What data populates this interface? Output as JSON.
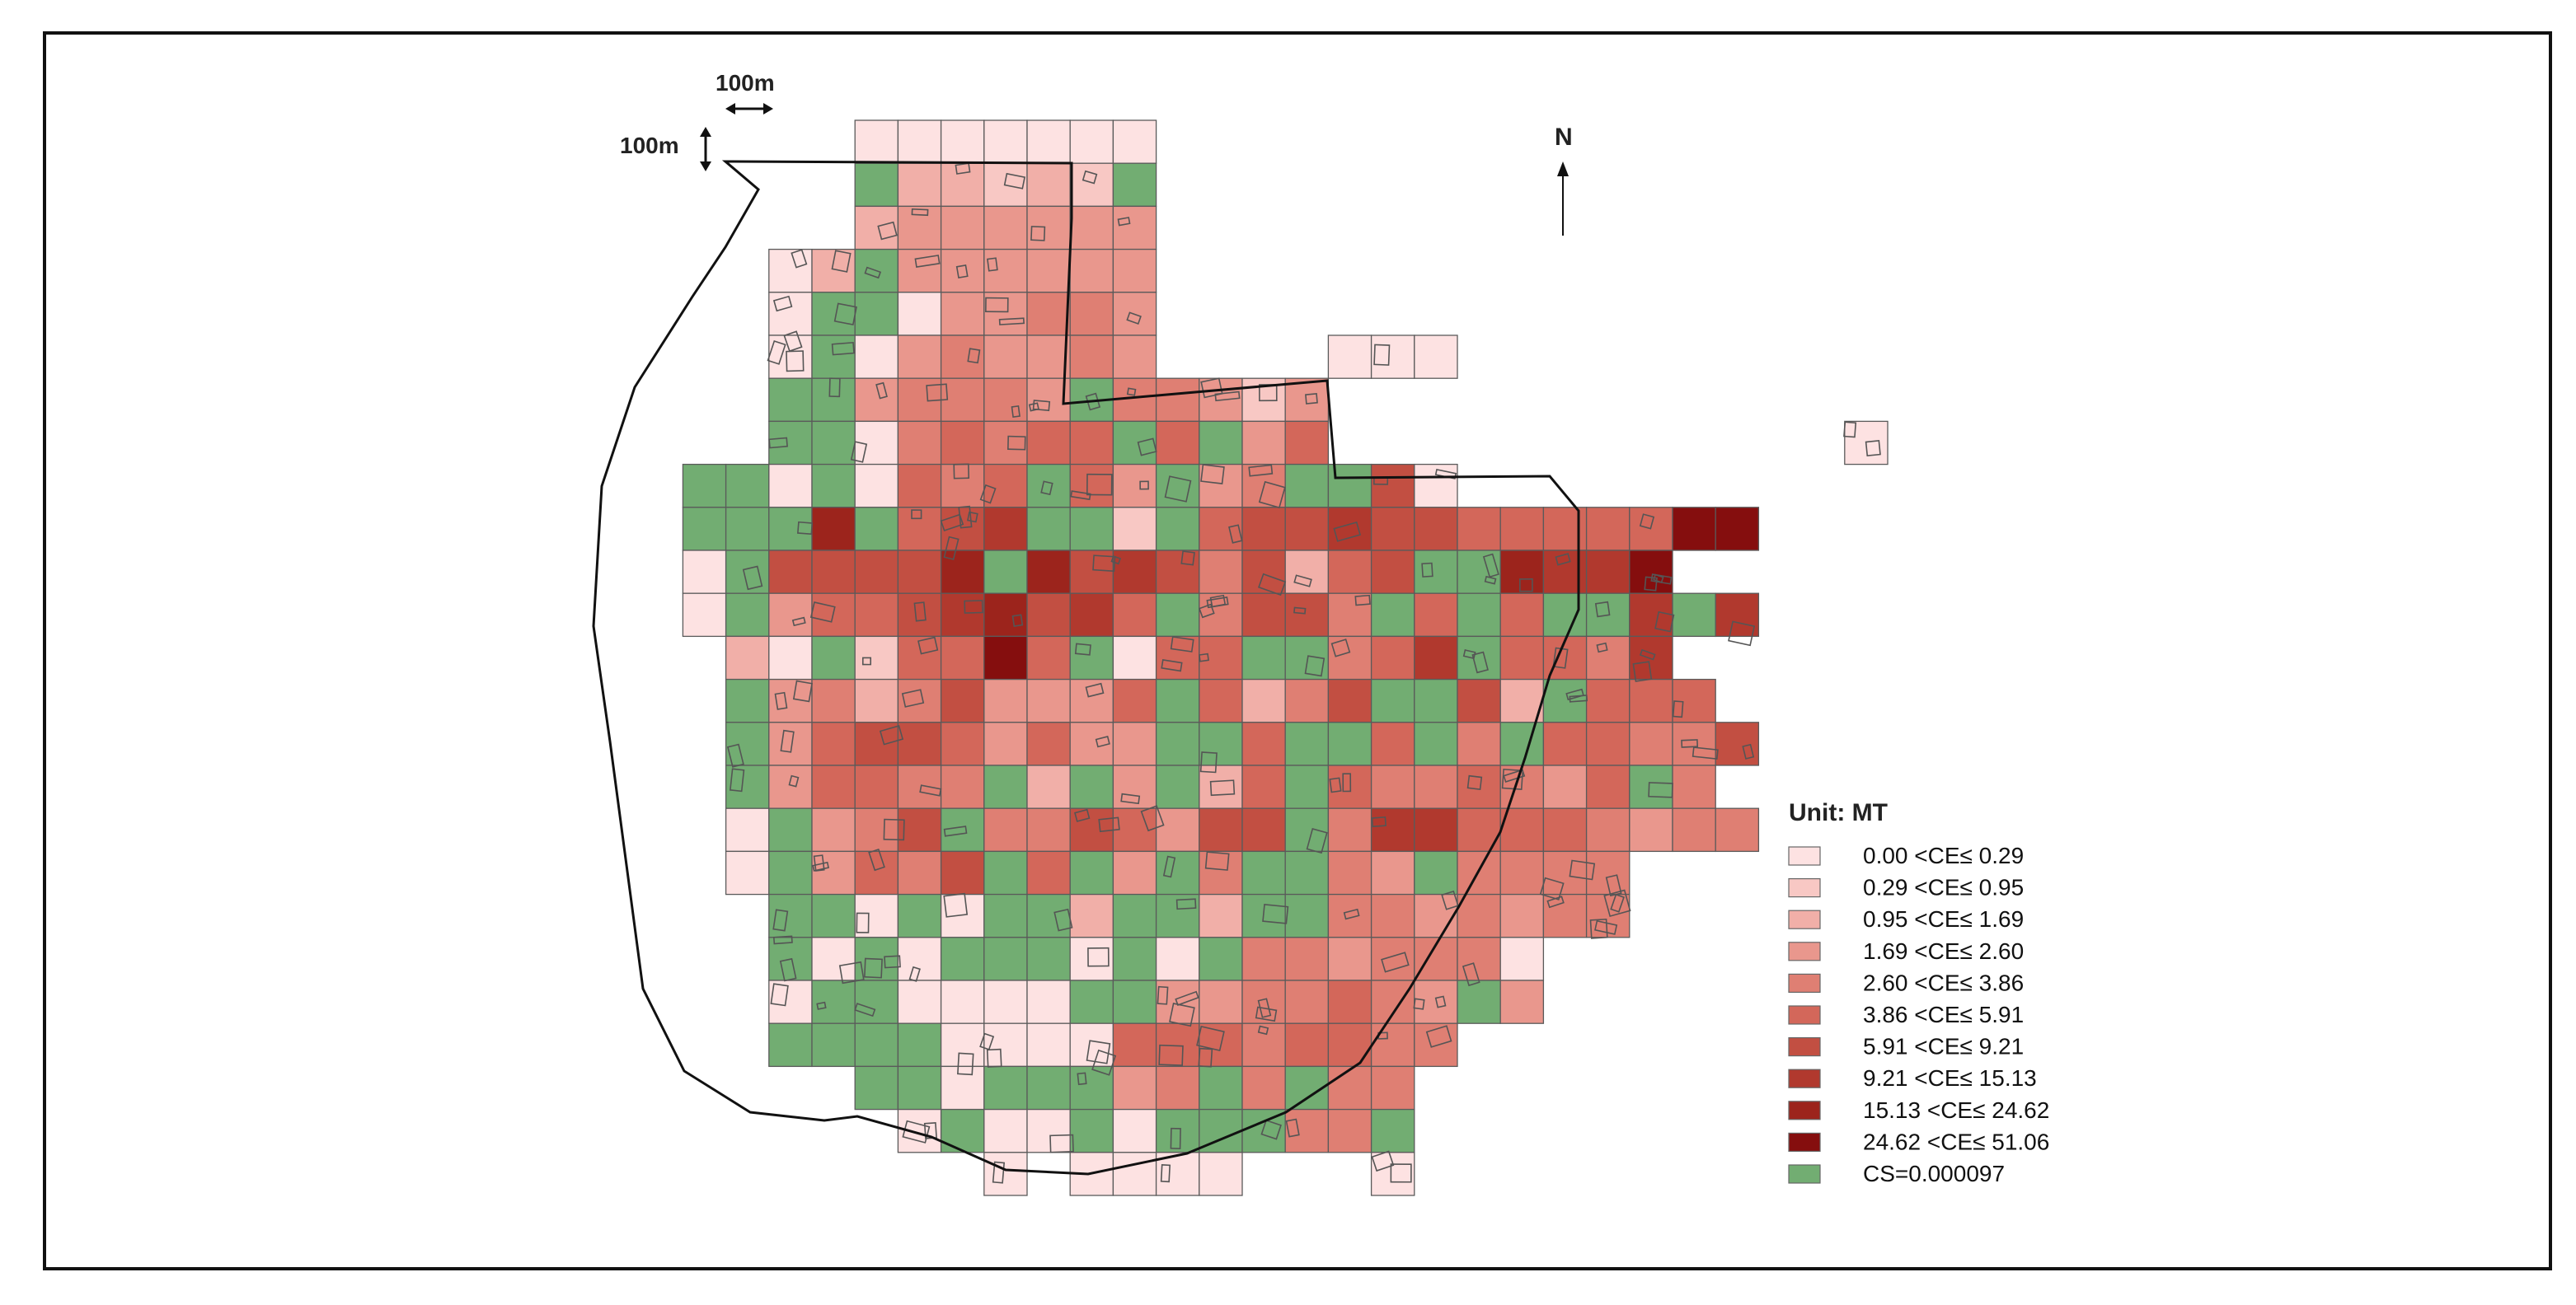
{
  "scale_bar": {
    "horizontal_label": "100m",
    "vertical_label": "100m"
  },
  "north_arrow": {
    "label": "N",
    "icon": "north-arrow-icon"
  },
  "legend": {
    "title": "Unit: MT",
    "items": [
      {
        "label": "0.00 <CE≤ 0.29",
        "color": "#fde2e2"
      },
      {
        "label": "0.29 <CE≤ 0.95",
        "color": "#f8c8c4"
      },
      {
        "label": "0.95 <CE≤ 1.69",
        "color": "#f1afa8"
      },
      {
        "label": "1.69 <CE≤ 2.60",
        "color": "#e9978d"
      },
      {
        "label": "2.60 <CE≤ 3.86",
        "color": "#df7f73"
      },
      {
        "label": "3.86 <CE≤ 5.91",
        "color": "#d3675a"
      },
      {
        "label": "5.91 <CE≤ 9.21",
        "color": "#c24f42"
      },
      {
        "label": "9.21 <CE≤ 15.13",
        "color": "#b1392e"
      },
      {
        "label": "15.13 <CE≤ 24.62",
        "color": "#9c241c"
      },
      {
        "label": "24.62 <CE≤ 51.06",
        "color": "#850e0e"
      },
      {
        "label": "CS=0.000097",
        "color": "#72ad72"
      }
    ]
  },
  "colors": {
    "grid_stroke": "#5a5a5a",
    "boundary_stroke": "#111111",
    "building_stroke": "#555555",
    "frame": "#111111"
  },
  "grid_rows": [
    "......0000000.................",
    "......G22121G.................",
    "......2333333.................",
    "....02G333333.................",
    "....0GG033443.................",
    "....0G0343343....000..........",
    "....GG34443G44313.............",
    "....GG045455G5G35............0",
    "..GG0G0545G53G34GG60..........",
    "..GGG8G567GG1G5667665555599....",
    "..0G66668G867646256GG8779......",
    "..0G355678675G4664G5G5GG7G7.....",
    "...20G15595G055GG457G5547......",
    "...G342463335G5246GG62G555......",
    "...G356653533GG5GG5G4G55446......",
    "...G35544G2G3G25G5445435G4.......",
    "...0G346G4465366G4775554344......",
    "...0G3546G5G3G4GG43G4444.........",
    "....GG0G0GG2GG2GG4434344..........",
    "....G0G0GGG0G0G4434440...........",
    "....0GG0000GG3344543G3...........",
    "....GGGG000055545544.............",
    "......GG0GGG34G4G44..............",
    ".......0G00G0GGG44G..............",
    ".........0.0000...0..............."
  ]
}
